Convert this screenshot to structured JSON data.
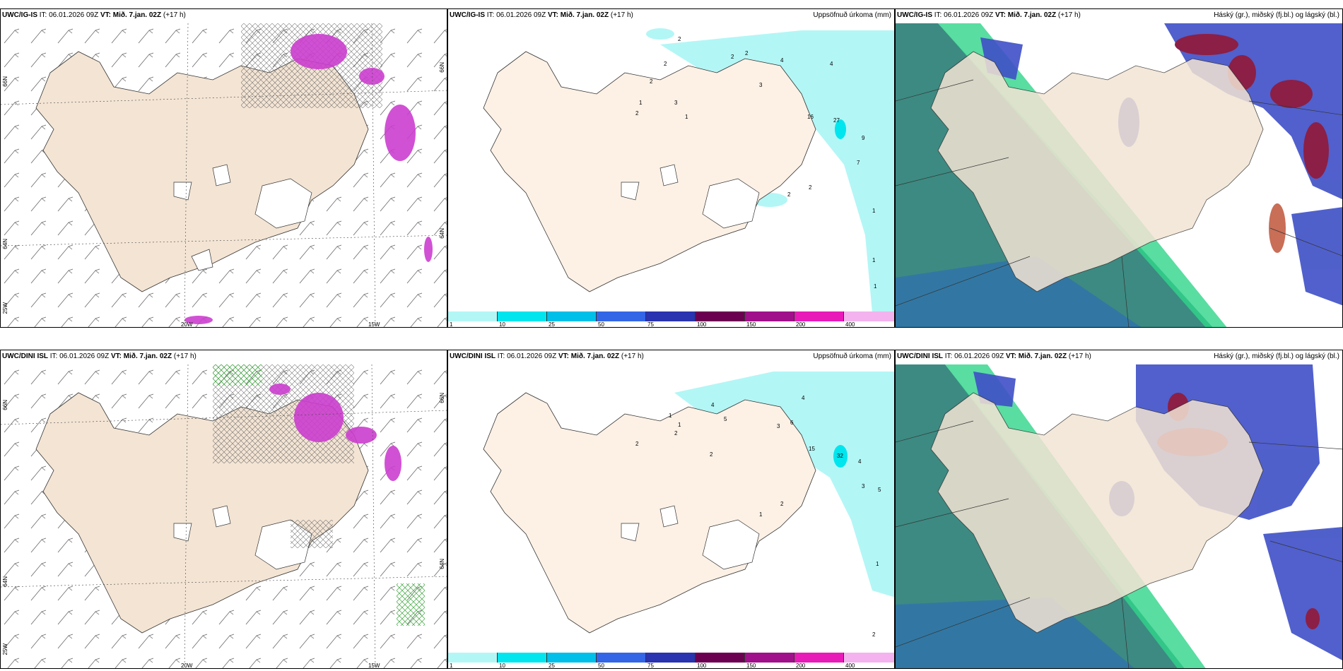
{
  "rows": [
    {
      "model": "UWC/IG-IS",
      "it_label": "IT:",
      "it_value": "06.01.2026 09Z",
      "vt_label": "VT:",
      "vt_value": "Mið. 7.jan. 02Z",
      "lead": "(+17 h)"
    },
    {
      "model": "UWC/DINI ISL",
      "it_label": "IT:",
      "it_value": "06.01.2026 09Z",
      "vt_label": "VT:",
      "vt_value": "Mið. 7.jan. 02Z",
      "lead": "(+17 h)"
    }
  ],
  "panel_titles": {
    "precip": "Uppsöfnuð úrkoma (mm)",
    "clouds": "Háský (gr.), miðský (fj.bl.) og lágský (bl.)"
  },
  "axis_labels": {
    "lat_66": "66N",
    "lat_64": "64N",
    "lat_63": "25W",
    "lon_20": "20W",
    "lon_15": "15W",
    "right_66": "66N",
    "right_64": "64N"
  },
  "precip_scale": {
    "labels": [
      "1",
      "10",
      "25",
      "50",
      "75",
      "100",
      "150",
      "200",
      "400"
    ],
    "colors": [
      "#b3f6f6",
      "#00e5ee",
      "#00bfe8",
      "#3366e6",
      "#2a33b0",
      "#6b0050",
      "#a0108a",
      "#e81ab8",
      "#f4b3ee"
    ]
  },
  "precip_numbers_top": [
    {
      "v": "2"
    },
    {
      "v": "2"
    },
    {
      "v": "2"
    },
    {
      "v": "1"
    },
    {
      "v": "2"
    },
    {
      "v": "3"
    },
    {
      "v": "1"
    },
    {
      "v": "2"
    },
    {
      "v": "2"
    },
    {
      "v": "4"
    },
    {
      "v": "3"
    },
    {
      "v": "4"
    },
    {
      "v": "16"
    },
    {
      "v": "27"
    },
    {
      "v": "9"
    },
    {
      "v": "7"
    },
    {
      "v": "2"
    },
    {
      "v": "2"
    },
    {
      "v": "1"
    },
    {
      "v": "1"
    },
    {
      "v": "1"
    }
  ],
  "precip_numbers_bottom": [
    {
      "v": "2"
    },
    {
      "v": "1"
    },
    {
      "v": "1"
    },
    {
      "v": "2"
    },
    {
      "v": "4"
    },
    {
      "v": "2"
    },
    {
      "v": "5"
    },
    {
      "v": "3"
    },
    {
      "v": "4"
    },
    {
      "v": "6"
    },
    {
      "v": "15"
    },
    {
      "v": "32"
    },
    {
      "v": "4"
    },
    {
      "v": "3"
    },
    {
      "v": "5"
    },
    {
      "v": "2"
    },
    {
      "v": "1"
    },
    {
      "v": "1"
    },
    {
      "v": "2"
    }
  ],
  "colors": {
    "land": "#f3e4d4",
    "land_precip": "#fdf1e6",
    "ice": "#ffffff",
    "sea_cloud_low": "#3d8a82",
    "cloud_mid": "#3e4fc6",
    "cloud_high": "#8c1f45",
    "precip_light": "#b3f6f6",
    "snow_magenta": "#cc3ecf"
  },
  "icons": {
    "wind_barb": "wind-barb-icon"
  }
}
